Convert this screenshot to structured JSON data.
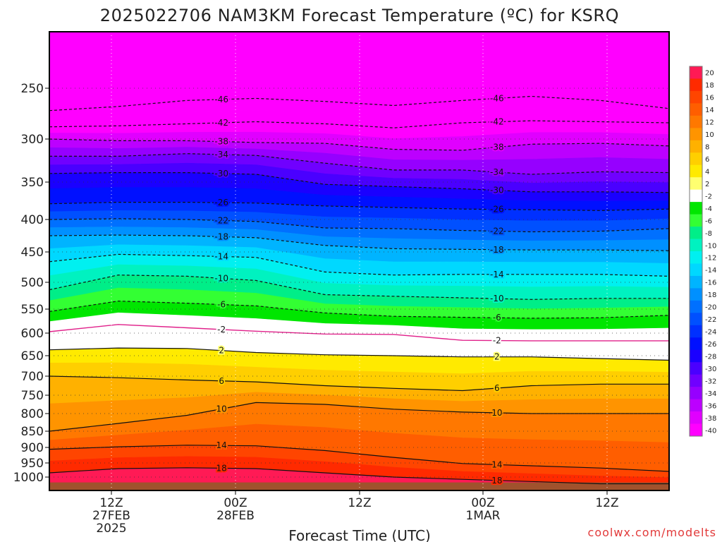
{
  "title": "2025022706 NAM3KM Forecast Temperature (ºC) for KSRQ",
  "credit": "coolwx.com/modelts",
  "chart_data": {
    "type": "heatmap",
    "title": "2025022706 NAM3KM Forecast Temperature (ºC) for KSRQ",
    "xlabel": "Forecast Time (UTC)",
    "ylabel": "",
    "x_ticks": [
      {
        "lines": [
          "12Z",
          "27FEB",
          "2025"
        ]
      },
      {
        "lines": [
          "00Z",
          "28FEB"
        ]
      },
      {
        "lines": [
          "12Z"
        ]
      },
      {
        "lines": [
          "00Z",
          "1MAR"
        ]
      },
      {
        "lines": [
          "12Z"
        ]
      }
    ],
    "y_axis": {
      "quantity": "pressure (hPa)",
      "reversed": true,
      "ticks": [
        250,
        300,
        350,
        400,
        450,
        500,
        550,
        600,
        650,
        700,
        750,
        800,
        850,
        900,
        950,
        1000
      ]
    },
    "colorbar": {
      "labels": [
        20,
        18,
        16,
        14,
        12,
        10,
        8,
        6,
        4,
        2,
        -2,
        -4,
        -6,
        -8,
        -10,
        -12,
        -14,
        -16,
        -18,
        -20,
        -22,
        -24,
        -26,
        -28,
        -30,
        -32,
        -34,
        -36,
        -38,
        -40
      ],
      "colors": [
        "#ff1a55",
        "#ff2a00",
        "#ff4500",
        "#ff5e00",
        "#ff7800",
        "#ff9400",
        "#ffb100",
        "#ffcf00",
        "#ffea00",
        "#ffff70",
        "#ffffff",
        "#00e600",
        "#33ff33",
        "#00ee88",
        "#00f2c0",
        "#00f0f0",
        "#00d8ff",
        "#00b4ff",
        "#0090ff",
        "#0070ff",
        "#0050ff",
        "#0030ff",
        "#0010ff",
        "#1a00ff",
        "#4a00ff",
        "#7000ff",
        "#9600ff",
        "#bc00ff",
        "#e000ff",
        "#ff00ff"
      ]
    },
    "isotherms": [
      {
        "label": "-46",
        "p": [
          272,
          268,
          262,
          260,
          263,
          267,
          262,
          258,
          262,
          270
        ]
      },
      {
        "label": "-42",
        "p": [
          288,
          287,
          285,
          283,
          285,
          289,
          284,
          282,
          283,
          284
        ]
      },
      {
        "label": "-38",
        "p": [
          300,
          302,
          302,
          304,
          305,
          312,
          313,
          306,
          305,
          308
        ]
      },
      {
        "label": "-34",
        "p": [
          320,
          320,
          317,
          319,
          328,
          336,
          336,
          341,
          338,
          339
        ]
      },
      {
        "label": "-30",
        "p": [
          340,
          339,
          339,
          341,
          353,
          356,
          359,
          363,
          363,
          364
        ]
      },
      {
        "label": "-26",
        "p": [
          379,
          377,
          377,
          378,
          382,
          384,
          386,
          387,
          388,
          386
        ]
      },
      {
        "label": "-22",
        "p": [
          400,
          399,
          400,
          403,
          413,
          414,
          417,
          419,
          418,
          414
        ]
      },
      {
        "label": "-18",
        "p": [
          425,
          424,
          425,
          428,
          440,
          445,
          446,
          447,
          447,
          448
        ]
      },
      {
        "label": "-14",
        "p": [
          466,
          454,
          456,
          459,
          483,
          488,
          487,
          487,
          487,
          490
        ]
      },
      {
        "label": "-10",
        "p": [
          514,
          488,
          490,
          497,
          523,
          526,
          529,
          532,
          530,
          530
        ]
      },
      {
        "label": "-6",
        "p": [
          555,
          535,
          539,
          544,
          558,
          565,
          567,
          569,
          568,
          563
        ]
      },
      {
        "label": "-2",
        "p": [
          597,
          582,
          589,
          596,
          602,
          603,
          616,
          617,
          617,
          617
        ]
      },
      {
        "label": "2",
        "p": [
          637,
          633,
          634,
          643,
          648,
          650,
          653,
          653,
          657,
          661
        ]
      },
      {
        "label": "6",
        "p": [
          700,
          704,
          710,
          715,
          725,
          732,
          738,
          725,
          721,
          721
        ]
      },
      {
        "label": "10",
        "p": [
          850,
          828,
          805,
          770,
          775,
          788,
          796,
          800,
          800,
          800
        ]
      },
      {
        "label": "14",
        "p": [
          906,
          898,
          893,
          895,
          910,
          932,
          952,
          960,
          968,
          980
        ]
      },
      {
        "label": "18",
        "p": [
          985,
          970,
          967,
          970,
          985,
          1000,
          1005,
          1010,
          1015,
          1015
        ]
      }
    ],
    "grid": true,
    "legend": "colorbar right"
  }
}
